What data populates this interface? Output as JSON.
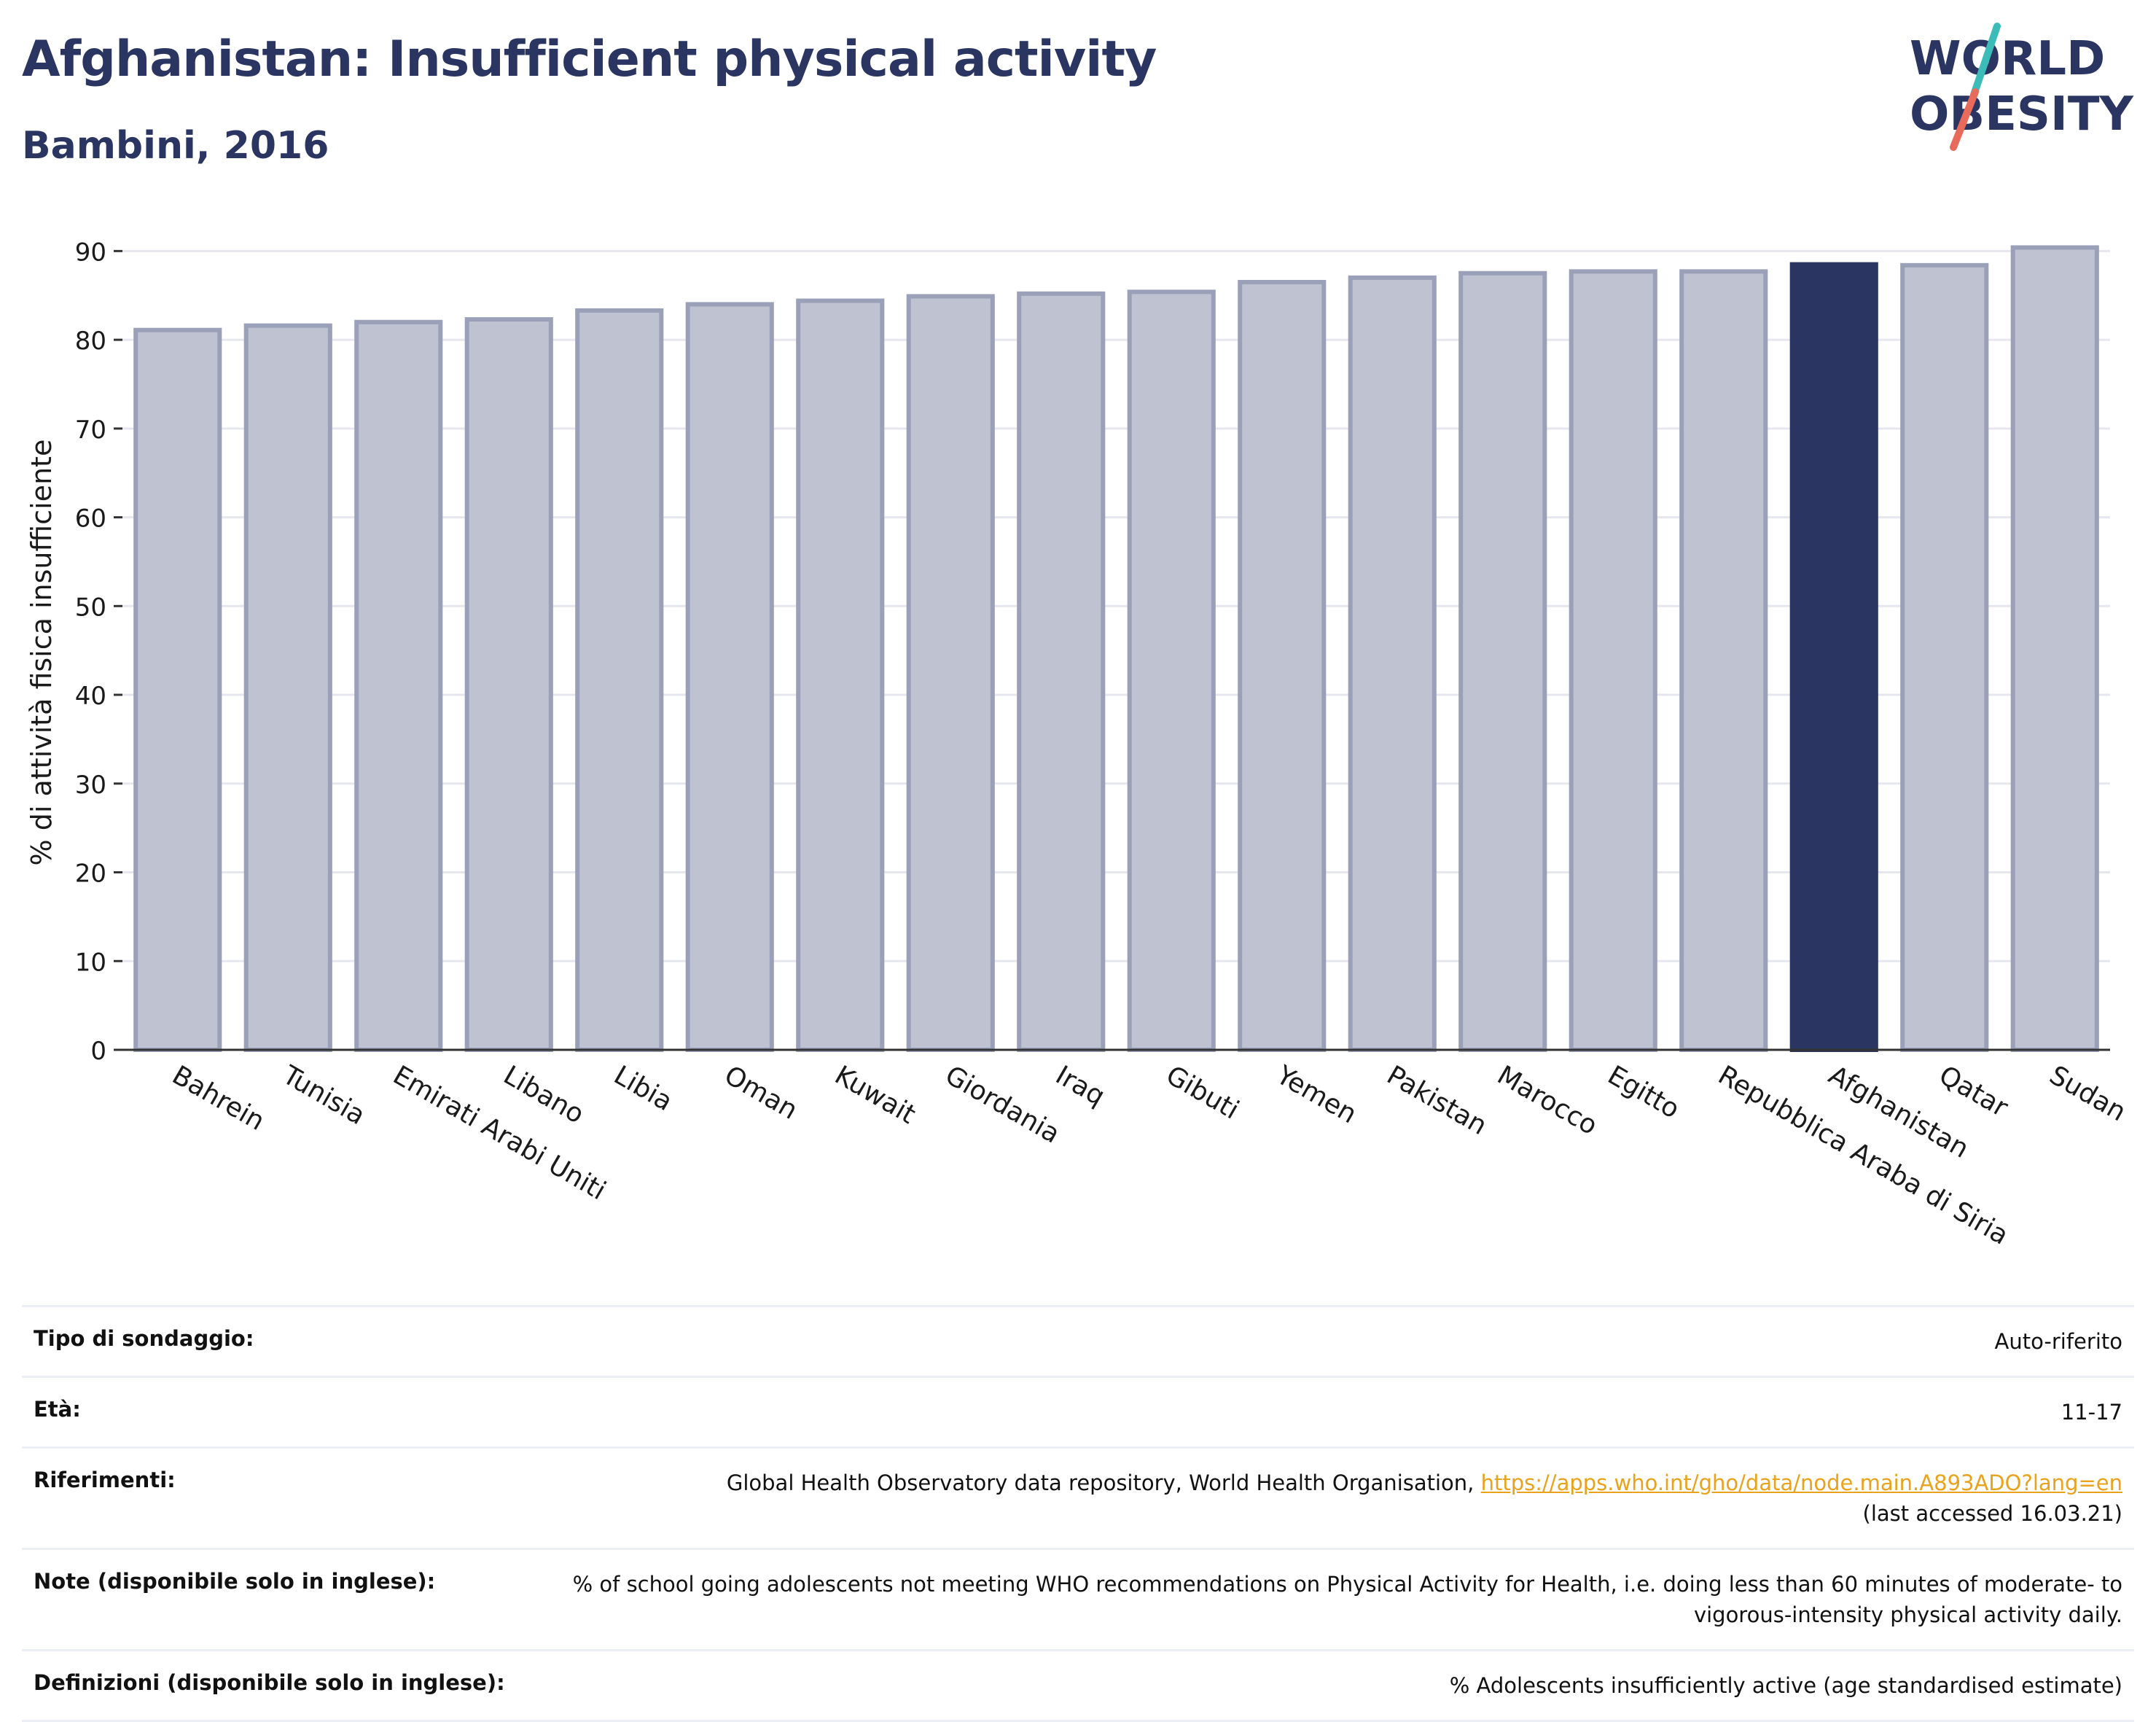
{
  "header": {
    "title": "Afghanistan: Insufficient physical activity",
    "subtitle": "Bambini, 2016"
  },
  "logo": {
    "line1": "WORLD",
    "line2": "OBESITY",
    "colors": {
      "text": "#2a3561",
      "slash_top": "#3bbcb8",
      "slash_bottom": "#e86a5a"
    }
  },
  "chart_data": {
    "type": "bar",
    "ylabel": "% di attività fisica insufficiente",
    "xlabel": "",
    "ylim": [
      0,
      92
    ],
    "yticks": [
      0,
      10,
      20,
      30,
      40,
      50,
      60,
      70,
      80,
      90
    ],
    "grid": true,
    "categories": [
      "Bahrein",
      "Tunisia",
      "Emirati Arabi Uniti",
      "Libano",
      "Libia",
      "Oman",
      "Kuwait",
      "Giordania",
      "Iraq",
      "Gibuti",
      "Yemen",
      "Pakistan",
      "Marocco",
      "Egitto",
      "Repubblica Araba di Siria",
      "Afghanistan",
      "Qatar",
      "Sudan"
    ],
    "values": [
      81.1,
      81.6,
      82.0,
      82.3,
      83.3,
      84.0,
      84.4,
      84.9,
      85.2,
      85.4,
      86.5,
      87.0,
      87.5,
      87.7,
      87.7,
      88.5,
      88.4,
      90.4
    ],
    "highlight": "Afghanistan",
    "colors": {
      "bar": "#bfc2d0",
      "bar_edge": "#9aa0b8",
      "highlight": "#2a3561",
      "grid": "#e6e7ee",
      "axis": "#333333"
    }
  },
  "info": [
    {
      "label": "Tipo di sondaggio:",
      "value": "Auto-riferito"
    },
    {
      "label": "Età:",
      "value": "11-17"
    },
    {
      "label": "Riferimenti:",
      "value_prefix": "Global Health Observatory data repository, World Health Organisation, ",
      "link": "https://apps.who.int/gho/data/node.main.A893ADO?lang=en",
      "value_suffix": "(last accessed 16.03.21)"
    },
    {
      "label": "Note (disponibile solo in inglese):",
      "value": "% of school going adolescents not meeting WHO recommendations on Physical Activity for Health, i.e. doing less than 60 minutes of moderate- to vigorous-intensity physical activity daily."
    },
    {
      "label": "Definizioni (disponibile solo in inglese):",
      "value": "% Adolescents insufficiently active (age standardised estimate)"
    }
  ]
}
